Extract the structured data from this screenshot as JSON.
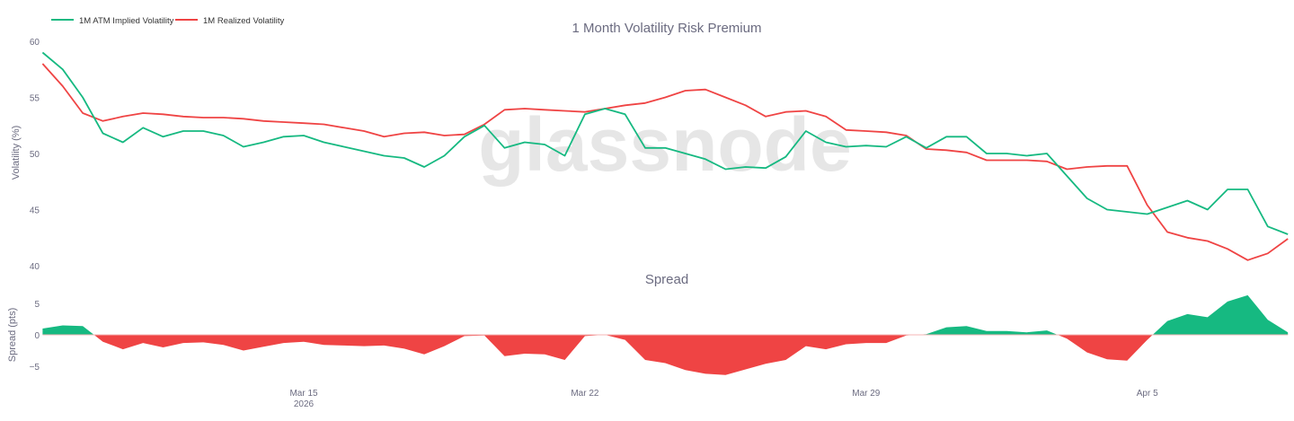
{
  "colors": {
    "implied": "#16b981",
    "realized": "#ef4444",
    "spread_pos": "#16b981",
    "spread_neg": "#ef4444",
    "text": "#6b6b80",
    "watermark": "#e6e6e6"
  },
  "watermark": "glassnode",
  "chart_data": [
    {
      "type": "line",
      "title": "1 Month Volatility Risk Premium",
      "ylabel": "Volatility (%)",
      "ylim": [
        40,
        60
      ],
      "yticks": [
        "40",
        "45",
        "50",
        "55",
        "60"
      ],
      "grid": false,
      "legend_placement": "top-left",
      "x": [
        "2026-03-08T12:00",
        "2026-03-09T00:00",
        "2026-03-09T12:00",
        "2026-03-10T00:00",
        "2026-03-10T12:00",
        "2026-03-11T00:00",
        "2026-03-11T12:00",
        "2026-03-12T00:00",
        "2026-03-12T12:00",
        "2026-03-13T00:00",
        "2026-03-13T12:00",
        "2026-03-14T00:00",
        "2026-03-14T12:00",
        "2026-03-15T00:00",
        "2026-03-15T12:00",
        "2026-03-16T00:00",
        "2026-03-16T12:00",
        "2026-03-17T00:00",
        "2026-03-17T12:00",
        "2026-03-18T00:00",
        "2026-03-18T12:00",
        "2026-03-19T00:00",
        "2026-03-19T12:00",
        "2026-03-20T00:00",
        "2026-03-20T12:00",
        "2026-03-21T00:00",
        "2026-03-21T12:00",
        "2026-03-22T00:00",
        "2026-03-22T12:00",
        "2026-03-23T00:00",
        "2026-03-23T12:00",
        "2026-03-24T00:00",
        "2026-03-24T12:00",
        "2026-03-25T00:00",
        "2026-03-25T12:00",
        "2026-03-26T00:00",
        "2026-03-26T12:00",
        "2026-03-27T00:00",
        "2026-03-27T12:00",
        "2026-03-28T00:00",
        "2026-03-28T12:00",
        "2026-03-29T00:00",
        "2026-03-29T12:00",
        "2026-03-30T00:00",
        "2026-03-30T12:00",
        "2026-03-31T00:00",
        "2026-03-31T12:00",
        "2026-04-01T00:00",
        "2026-04-01T12:00",
        "2026-04-02T00:00",
        "2026-04-02T12:00",
        "2026-04-03T00:00",
        "2026-04-03T12:00",
        "2026-04-04T00:00",
        "2026-04-04T12:00",
        "2026-04-05T00:00",
        "2026-04-05T12:00",
        "2026-04-06T00:00",
        "2026-04-06T12:00",
        "2026-04-07T00:00",
        "2026-04-07T12:00",
        "2026-04-08T00:00",
        "2026-04-08T12:00"
      ],
      "xticks": [
        {
          "date": "2026-03-15",
          "label": "Mar 15",
          "sub": "2026"
        },
        {
          "date": "2026-03-22",
          "label": "Mar 22"
        },
        {
          "date": "2026-03-29",
          "label": "Mar 29"
        },
        {
          "date": "2026-04-05",
          "label": "Apr 5"
        }
      ],
      "series": [
        {
          "name": "1M ATM Implied Volatility",
          "values": [
            59,
            57.5,
            55,
            51.8,
            51,
            52.3,
            51.5,
            52,
            52,
            51.6,
            50.6,
            51,
            51.5,
            51.6,
            51,
            50.6,
            50.2,
            49.8,
            49.6,
            48.8,
            49.8,
            51.5,
            52.5,
            50.5,
            51,
            50.8,
            49.8,
            53.5,
            54,
            53.5,
            50.5,
            50.5,
            50,
            49.5,
            48.6,
            48.8,
            48.7,
            49.7,
            52,
            51,
            50.6,
            50.7,
            50.6,
            51.5,
            50.5,
            51.5,
            51.5,
            50,
            50,
            49.8,
            50,
            48,
            46,
            45,
            44.8,
            44.6,
            45.2,
            45.8,
            45,
            46.8,
            46.8,
            43.5,
            42.8
          ]
        },
        {
          "name": "1M Realized Volatility",
          "values": [
            58,
            56,
            53.6,
            52.9,
            53.3,
            53.6,
            53.5,
            53.3,
            53.2,
            53.2,
            53.1,
            52.9,
            52.8,
            52.7,
            52.6,
            52.3,
            52,
            51.5,
            51.8,
            51.9,
            51.6,
            51.7,
            52.6,
            53.9,
            54,
            53.9,
            53.8,
            53.7,
            54,
            54.3,
            54.5,
            55,
            55.6,
            55.7,
            55,
            54.3,
            53.3,
            53.7,
            53.8,
            53.3,
            52.1,
            52,
            51.9,
            51.6,
            50.4,
            50.3,
            50.1,
            49.4,
            49.4,
            49.4,
            49.3,
            48.6,
            48.8,
            48.9,
            48.9,
            45.4,
            43,
            42.5,
            42.2,
            41.5,
            40.5,
            41.1,
            42.4
          ]
        }
      ]
    },
    {
      "type": "area",
      "title": "Spread",
      "ylabel": "Spread (pts)",
      "ylim": [
        -7.5,
        7.5
      ],
      "yticks": [
        "-5",
        "0",
        "5"
      ],
      "grid": false,
      "note_series": "implied minus realized"
    }
  ]
}
